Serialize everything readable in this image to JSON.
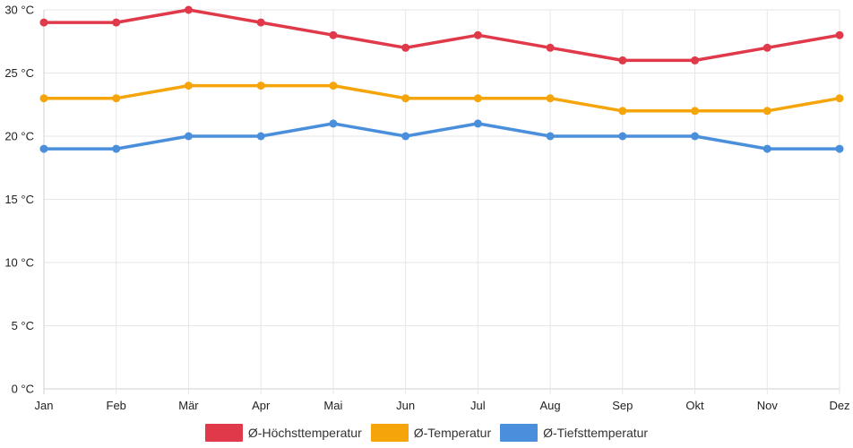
{
  "chart_data": {
    "type": "line",
    "categories": [
      "Jan",
      "Feb",
      "Mär",
      "Apr",
      "Mai",
      "Jun",
      "Jul",
      "Aug",
      "Sep",
      "Okt",
      "Nov",
      "Dez"
    ],
    "series": [
      {
        "name": "Ø-Höchsttemperatur",
        "color": "#e0394a",
        "values": [
          29,
          29,
          30,
          29,
          28,
          27,
          28,
          27,
          26,
          26,
          27,
          28
        ]
      },
      {
        "name": "Ø-Temperatur",
        "color": "#f5a50a",
        "values": [
          23,
          23,
          24,
          24,
          24,
          23,
          23,
          23,
          22,
          22,
          22,
          23
        ]
      },
      {
        "name": "Ø-Tiefsttemperatur",
        "color": "#4a8fdc",
        "values": [
          19,
          19,
          20,
          20,
          21,
          20,
          21,
          20,
          20,
          20,
          19,
          19
        ]
      }
    ],
    "yticks": [
      "0 °C",
      "5 °C",
      "10 °C",
      "15 °C",
      "20 °C",
      "25 °C",
      "30 °C"
    ],
    "ylim": [
      0,
      30
    ],
    "ystep": 5,
    "grid": true,
    "legend": "bottom-center"
  }
}
